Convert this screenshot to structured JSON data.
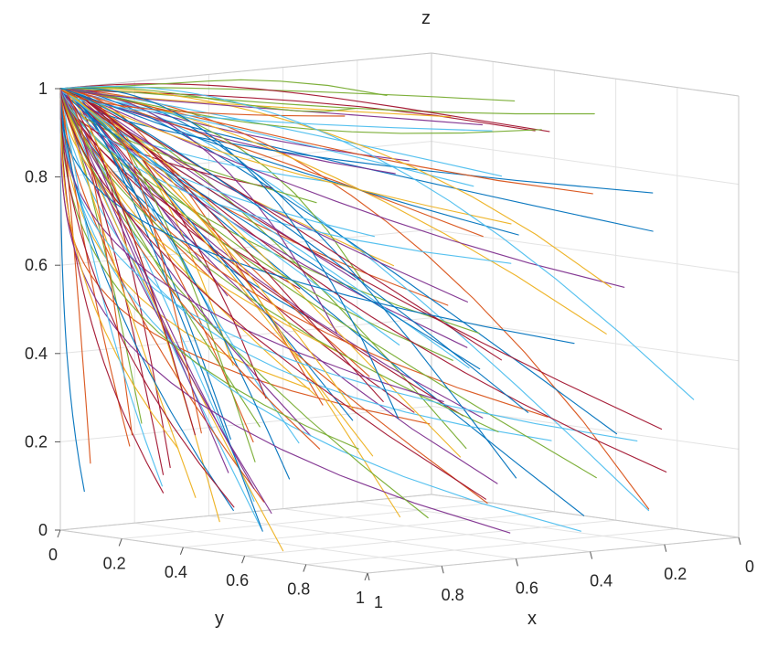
{
  "chart_data": {
    "type": "line",
    "plot_kind": "3d-phase-trajectories",
    "xlabel": "x",
    "ylabel": "y",
    "zlabel": "z",
    "xlim": [
      0,
      1
    ],
    "ylim": [
      0,
      1
    ],
    "zlim": [
      0,
      1
    ],
    "x_ticks": [
      "0",
      "0.2",
      "0.4",
      "0.6",
      "0.8",
      "1"
    ],
    "y_ticks": [
      "0",
      "0.2",
      "0.4",
      "0.6",
      "0.8",
      "1"
    ],
    "z_ticks": [
      "0",
      "0.2",
      "0.4",
      "0.6",
      "0.8",
      "1"
    ],
    "grid": true,
    "legend": "none",
    "convergence_point": {
      "x": 1,
      "y": 0,
      "z": 1
    },
    "trajectory_count": 120,
    "series_colors": [
      "#0072bd",
      "#d95319",
      "#edb120",
      "#7e2f8e",
      "#77ac30",
      "#4dbeee",
      "#a2142f"
    ]
  }
}
